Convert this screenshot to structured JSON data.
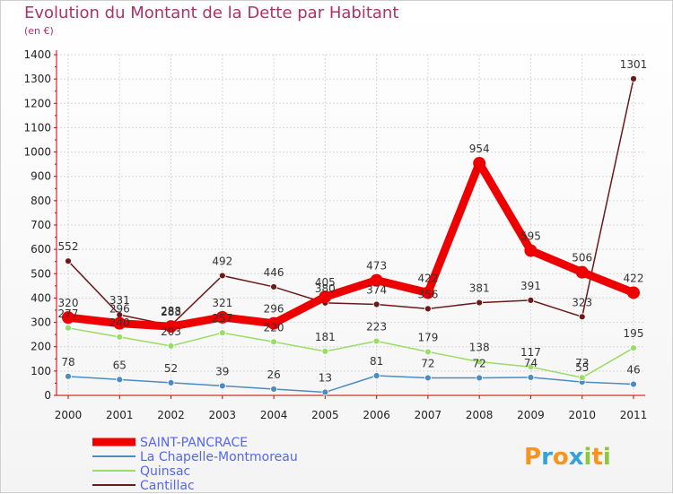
{
  "title": "Evolution du Montant de la Dette par Habitant",
  "subtitle": "(en €)",
  "logo": {
    "text": "Proxiti",
    "letters": [
      "P",
      "r",
      "o",
      "x",
      "i",
      "t",
      "i"
    ],
    "colors": [
      "#f7941d",
      "#3aa0d8",
      "#f7941d",
      "#3aa0d8",
      "#8dc63f",
      "#f7941d",
      "#8dc63f"
    ]
  },
  "chart_data": {
    "type": "line",
    "title": "Evolution du Montant de la Dette par Habitant",
    "subtitle": "(en €)",
    "xlabel": "",
    "ylabel": "",
    "x": [
      "2000",
      "2001",
      "2002",
      "2003",
      "2004",
      "2005",
      "2006",
      "2007",
      "2008",
      "2009",
      "2010",
      "2011"
    ],
    "ylim": [
      0,
      1400
    ],
    "yticks": [
      "0",
      "100",
      "200",
      "300",
      "400",
      "500",
      "600",
      "700",
      "800",
      "900",
      "1000",
      "1100",
      "1200",
      "1300",
      "1400"
    ],
    "grid": true,
    "legend_position": "bottom-left",
    "series": [
      {
        "name": "SAINT-PANCRACE",
        "color": "#ee0000",
        "values": [
          320,
          296,
          283,
          321,
          296,
          405,
          473,
          422,
          954,
          595,
          506,
          422
        ]
      },
      {
        "name": "La Chapelle-Montmoreau",
        "color": "#4a8cc4",
        "values": [
          78,
          65,
          52,
          39,
          26,
          13,
          81,
          72,
          72,
          74,
          55,
          46
        ]
      },
      {
        "name": "Quinsac",
        "color": "#99dd66",
        "values": [
          277,
          240,
          203,
          257,
          220,
          181,
          223,
          179,
          138,
          117,
          73,
          195
        ]
      },
      {
        "name": "Cantillac",
        "color": "#6b1a1a",
        "values": [
          552,
          331,
          288,
          492,
          446,
          380,
          374,
          356,
          381,
          391,
          323,
          1301
        ]
      }
    ],
    "data_labels": [
      [
        "320",
        "296",
        "283",
        "321",
        "296",
        "405",
        "473",
        "422",
        "954",
        "595",
        "506",
        "422"
      ],
      [
        "78",
        "65",
        "52",
        "39",
        "26",
        "13",
        "81",
        "72",
        "72",
        "74",
        "55",
        "46"
      ],
      [
        "277",
        "240",
        "203",
        "257",
        "220",
        "181",
        "223",
        "179",
        "138",
        "117",
        "73",
        "195"
      ],
      [
        "552",
        "331",
        "288",
        "492",
        "446",
        "380",
        "374",
        "356",
        "381",
        "391",
        "323",
        "1301"
      ]
    ]
  }
}
